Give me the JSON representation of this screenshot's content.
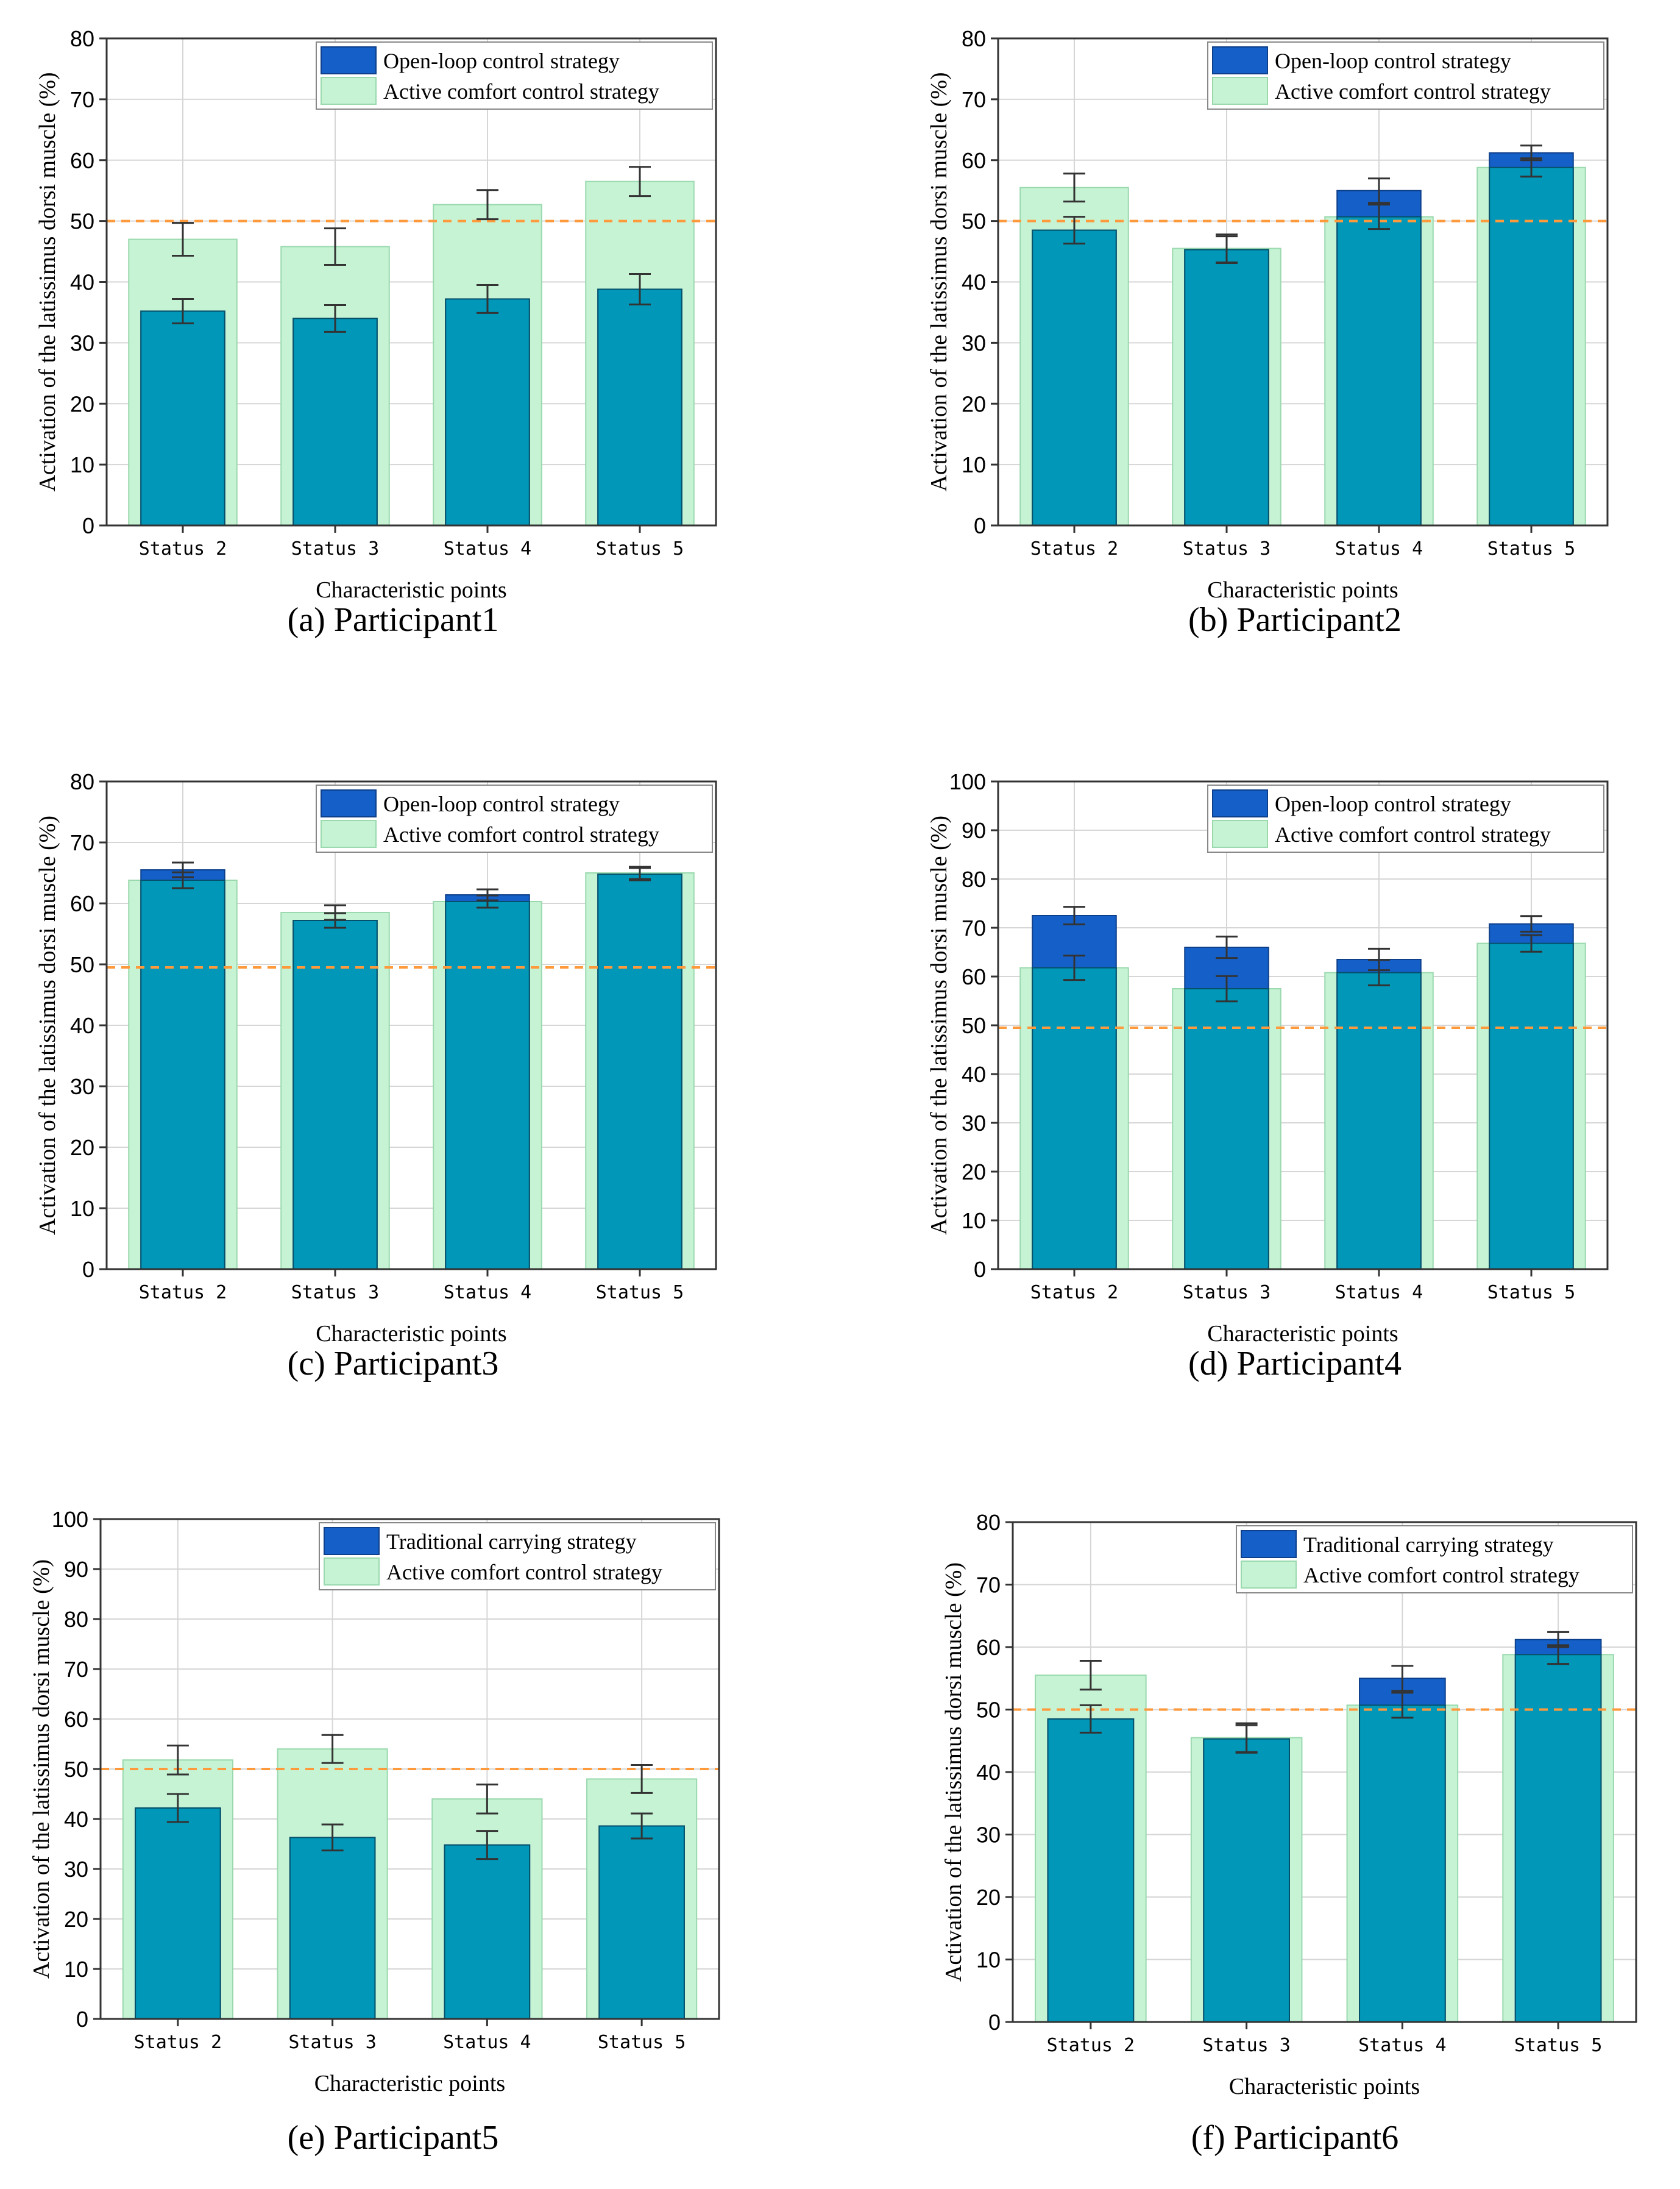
{
  "colors": {
    "open_loop": "#1560c8",
    "active_comfort": "#c6f3d4",
    "overlap": "#0097b8",
    "threshold": "#ff9a3c",
    "grid": "#d6d6d6",
    "axis": "#333333"
  },
  "chart_data": [
    {
      "type": "bar",
      "caption": "(a) Participant1",
      "xlabel": "Characteristic points",
      "ylabel": "Activation of the latissimus dorsi muscle (%)",
      "categories": [
        "Status 2",
        "Status 3",
        "Status 4",
        "Status 5"
      ],
      "ylim": [
        0,
        80
      ],
      "yticks": [
        0,
        10,
        20,
        30,
        40,
        50,
        60,
        70,
        80
      ],
      "threshold": 50,
      "series": [
        {
          "name": "Open-loop control strategy",
          "values": [
            35.2,
            34.0,
            37.2,
            38.8
          ],
          "errors": [
            2.0,
            2.2,
            2.3,
            2.5
          ]
        },
        {
          "name": "Active comfort control strategy",
          "values": [
            47.0,
            45.8,
            52.7,
            56.5
          ],
          "errors": [
            2.7,
            3.0,
            2.4,
            2.4
          ]
        }
      ]
    },
    {
      "type": "bar",
      "caption": "(b) Participant2",
      "xlabel": "Characteristic points",
      "ylabel": "Activation of the latissimus dorsi muscle (%)",
      "categories": [
        "Status 2",
        "Status 3",
        "Status 4",
        "Status 5"
      ],
      "ylim": [
        0,
        80
      ],
      "yticks": [
        0,
        10,
        20,
        30,
        40,
        50,
        60,
        70,
        80
      ],
      "threshold": 50,
      "series": [
        {
          "name": "Open-loop control strategy",
          "values": [
            48.5,
            45.3,
            55.0,
            61.2
          ],
          "errors": [
            2.2,
            2.2,
            2.0,
            1.2
          ]
        },
        {
          "name": "Active comfort control strategy",
          "values": [
            55.5,
            45.5,
            50.7,
            58.8
          ],
          "errors": [
            2.3,
            2.3,
            2.0,
            1.5
          ]
        }
      ]
    },
    {
      "type": "bar",
      "caption": "(c) Participant3",
      "xlabel": "Characteristic points",
      "ylabel": "Activation of the latissimus dorsi muscle (%)",
      "categories": [
        "Status 2",
        "Status 3",
        "Status 4",
        "Status 5"
      ],
      "ylim": [
        0,
        80
      ],
      "yticks": [
        0,
        10,
        20,
        30,
        40,
        50,
        60,
        70,
        80
      ],
      "threshold": 49.5,
      "series": [
        {
          "name": "Open-loop control strategy",
          "values": [
            65.5,
            57.2,
            61.4,
            64.8
          ],
          "errors": [
            1.2,
            1.2,
            0.9,
            1.0
          ]
        },
        {
          "name": "Active comfort control strategy",
          "values": [
            63.8,
            58.5,
            60.3,
            65.0
          ],
          "errors": [
            1.3,
            1.2,
            1.0,
            1.0
          ]
        }
      ]
    },
    {
      "type": "bar",
      "caption": "(d) Participant4",
      "xlabel": "Characteristic points",
      "ylabel": "Activation of the latissimus dorsi muscle (%)",
      "categories": [
        "Status 2",
        "Status 3",
        "Status 4",
        "Status 5"
      ],
      "ylim": [
        0,
        100
      ],
      "yticks": [
        0,
        10,
        20,
        30,
        40,
        50,
        60,
        70,
        80,
        90,
        100
      ],
      "threshold": 49.5,
      "series": [
        {
          "name": "Open-loop control strategy",
          "values": [
            72.5,
            66.0,
            63.5,
            70.8
          ],
          "errors": [
            1.8,
            2.2,
            2.2,
            1.6
          ]
        },
        {
          "name": "Active comfort control strategy",
          "values": [
            61.8,
            57.5,
            60.8,
            66.8
          ],
          "errors": [
            2.5,
            2.6,
            2.6,
            1.7
          ]
        }
      ]
    },
    {
      "type": "bar",
      "caption": "(e) Participant5",
      "xlabel": "Characteristic points",
      "ylabel": "Activation of the latissimus dorsi muscle (%)",
      "categories": [
        "Status 2",
        "Status 3",
        "Status 4",
        "Status 5"
      ],
      "ylim": [
        0,
        100
      ],
      "yticks": [
        0,
        10,
        20,
        30,
        40,
        50,
        60,
        70,
        80,
        90,
        100
      ],
      "threshold": 50,
      "series": [
        {
          "name": "Traditional carrying strategy",
          "values": [
            42.2,
            36.3,
            34.8,
            38.6
          ],
          "errors": [
            2.8,
            2.6,
            2.8,
            2.5
          ]
        },
        {
          "name": "Active comfort control strategy",
          "values": [
            51.8,
            54.0,
            44.0,
            48.0
          ],
          "errors": [
            2.9,
            2.8,
            2.9,
            2.8
          ]
        }
      ]
    },
    {
      "type": "bar",
      "caption": "(f) Participant6",
      "xlabel": "Characteristic points",
      "ylabel": "Activation of the latissimus dorsi muscle (%)",
      "categories": [
        "Status 2",
        "Status 3",
        "Status 4",
        "Status 5"
      ],
      "ylim": [
        0,
        80
      ],
      "yticks": [
        0,
        10,
        20,
        30,
        40,
        50,
        60,
        70,
        80
      ],
      "threshold": 50,
      "series": [
        {
          "name": "Traditional carrying strategy",
          "values": [
            48.5,
            45.3,
            55.0,
            61.2
          ],
          "errors": [
            2.2,
            2.2,
            2.0,
            1.2
          ]
        },
        {
          "name": "Active comfort control strategy",
          "values": [
            55.5,
            45.5,
            50.7,
            58.8
          ],
          "errors": [
            2.3,
            2.3,
            2.0,
            1.5
          ]
        }
      ]
    }
  ]
}
